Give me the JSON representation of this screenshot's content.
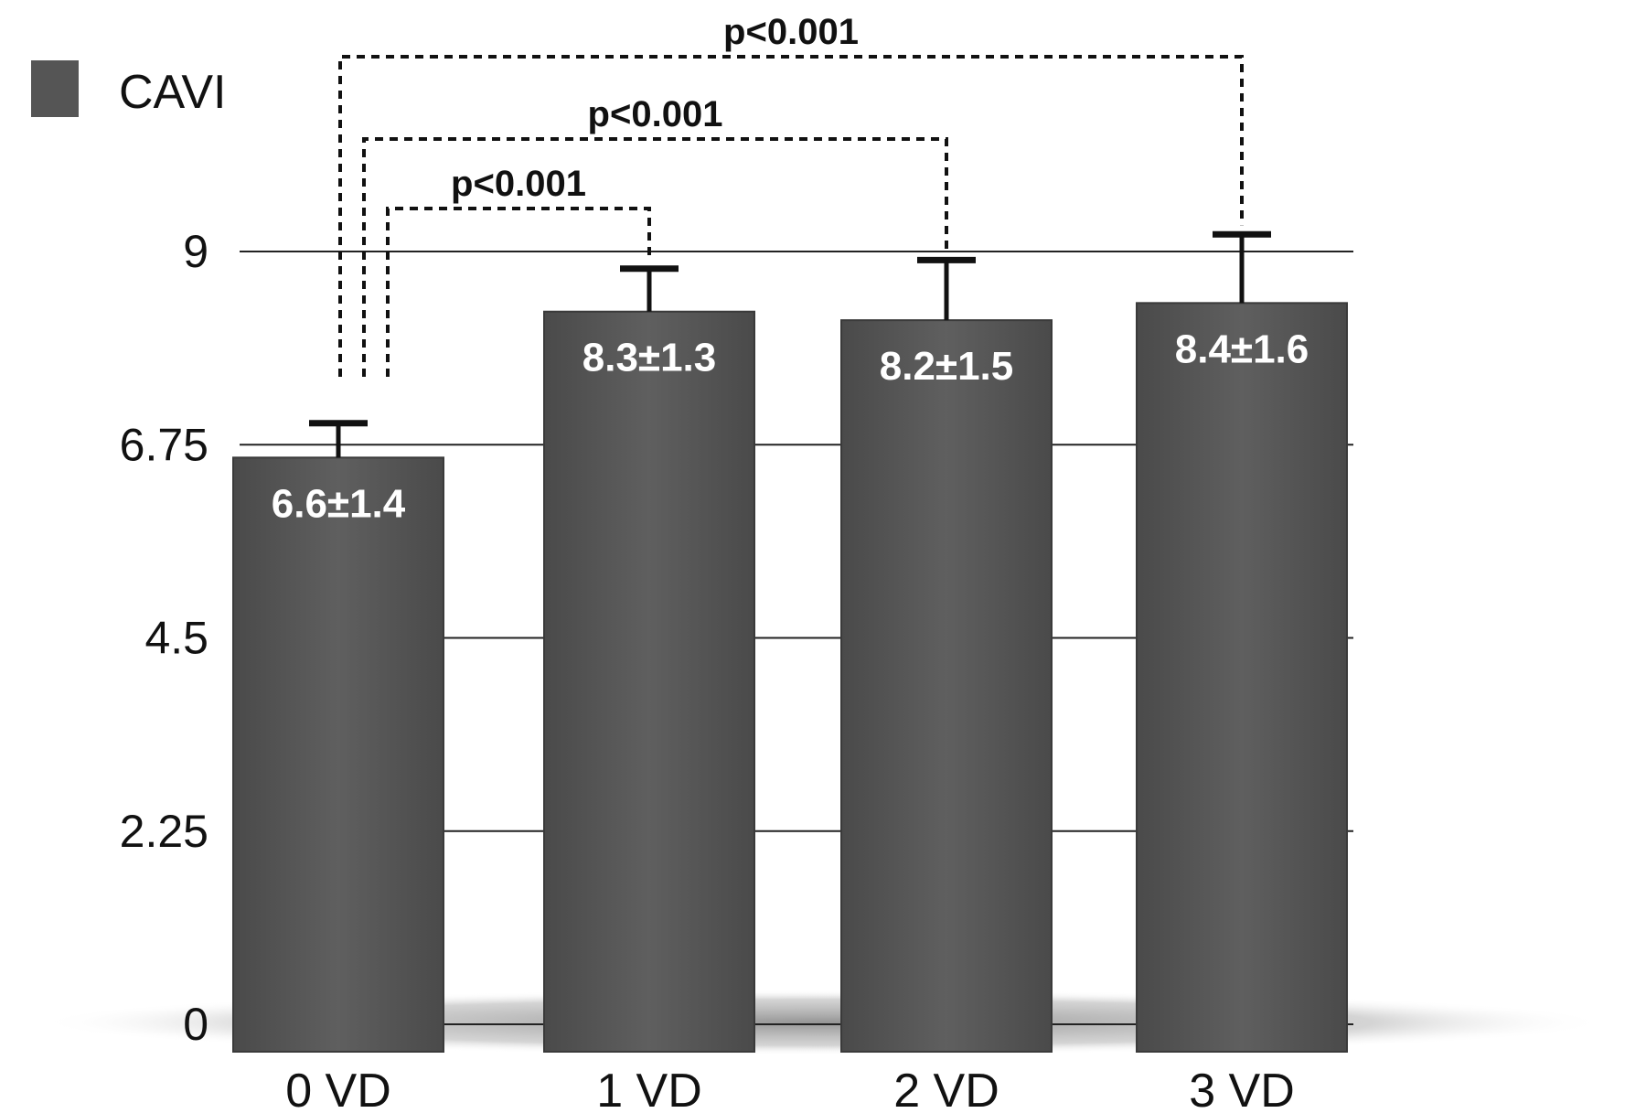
{
  "chart_data": {
    "type": "bar",
    "categories": [
      "0 VD",
      "1 VD",
      "2 VD",
      "3 VD"
    ],
    "series": [
      {
        "name": "CAVI",
        "values": [
          6.6,
          8.3,
          8.2,
          8.4
        ],
        "errors": [
          0.4,
          0.5,
          0.7,
          0.8
        ],
        "value_labels": [
          "6.6±1.4",
          "8.3±1.3",
          "8.2±1.5",
          "8.4±1.6"
        ]
      }
    ],
    "y_ticks": [
      0,
      2.25,
      4.5,
      6.75,
      9
    ],
    "y_tick_labels": [
      "0",
      "2.25",
      "4.5",
      "6.75",
      "9"
    ],
    "ylim": [
      0,
      10.2
    ],
    "legend": {
      "label": "CAVI",
      "placement": "top-left"
    },
    "significance": [
      {
        "from": 0,
        "to": 1,
        "label": "p<0.001"
      },
      {
        "from": 0,
        "to": 2,
        "label": "p<0.001"
      },
      {
        "from": 0,
        "to": 3,
        "label": "p<0.001"
      }
    ],
    "grid": true,
    "bar_color": "#5a5a5a"
  }
}
